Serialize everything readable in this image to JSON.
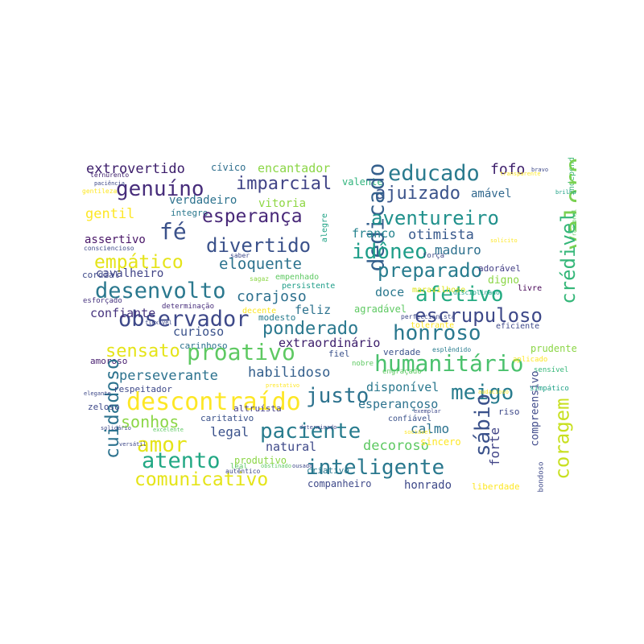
{
  "words": [
    {
      "text": "extrovertido",
      "color": "#3b1c6a"
    },
    {
      "text": "cívico",
      "color": "#2f6f8e"
    },
    {
      "text": "encantador",
      "color": "#8bd646"
    },
    {
      "text": "educado",
      "color": "#2a7b8e"
    },
    {
      "text": "fofo",
      "color": "#3b1c6a"
    },
    {
      "text": "independente",
      "color": "#3fb979"
    },
    {
      "text": "ternurento",
      "color": "#3b1c6a"
    },
    {
      "text": "genuíno",
      "color": "#472d7b"
    },
    {
      "text": "imparcial",
      "color": "#414487"
    },
    {
      "text": "ajuizado",
      "color": "#3a538b"
    },
    {
      "text": "amável",
      "color": "#31688e"
    },
    {
      "text": "valoroso",
      "color": "#7ad151"
    },
    {
      "text": "verdadeiro",
      "color": "#2c728e"
    },
    {
      "text": "vitoria",
      "color": "#8fd744"
    },
    {
      "text": "valente",
      "color": "#2fb47c"
    },
    {
      "text": "gentil",
      "color": "#fde725"
    },
    {
      "text": "íntegro",
      "color": "#2a788e"
    },
    {
      "text": "esperança",
      "color": "#482878"
    },
    {
      "text": "dedicado",
      "color": "#35608d"
    },
    {
      "text": "aventureiro",
      "color": "#21918c"
    },
    {
      "text": "fé",
      "color": "#3b528b"
    },
    {
      "text": "alegre",
      "color": "#20a386"
    },
    {
      "text": "assertivo",
      "color": "#481567"
    },
    {
      "text": "divertido",
      "color": "#3b528b"
    },
    {
      "text": "franco",
      "color": "#25838e"
    },
    {
      "text": "otimista",
      "color": "#38598c"
    },
    {
      "text": "idôneo",
      "color": "#1f9e89"
    },
    {
      "text": "consciencioso",
      "color": "#3e4989"
    },
    {
      "text": "empático",
      "color": "#e5e419"
    },
    {
      "text": "eloquente",
      "color": "#2c728e"
    },
    {
      "text": "maduro",
      "color": "#2d708e"
    },
    {
      "text": "crédivel",
      "color": "#35b779"
    },
    {
      "text": "cavalheiro",
      "color": "#414487"
    },
    {
      "text": "preparado",
      "color": "#287c8e"
    },
    {
      "text": "adorável",
      "color": "#433e85"
    },
    {
      "text": "cordial",
      "color": "#3e4989"
    },
    {
      "text": "desenvolto",
      "color": "#2a788e"
    },
    {
      "text": "empenhado",
      "color": "#5ec962"
    },
    {
      "text": "persistente",
      "color": "#1f9e89"
    },
    {
      "text": "digno",
      "color": "#8bd646"
    },
    {
      "text": "livre",
      "color": "#440154"
    },
    {
      "text": "afetivo",
      "color": "#25ab82"
    },
    {
      "text": "doce",
      "color": "#2a788e"
    },
    {
      "text": "maravilhoso",
      "color": "#dde318"
    },
    {
      "text": "esforçado",
      "color": "#46337e"
    },
    {
      "text": "corajoso",
      "color": "#2d708e"
    },
    {
      "text": "determinação",
      "color": "#472d7b"
    },
    {
      "text": "observador",
      "color": "#3e4989"
    },
    {
      "text": "feliz",
      "color": "#2c728e"
    },
    {
      "text": "agradável",
      "color": "#5ec962"
    },
    {
      "text": "escrupuloso",
      "color": "#3e4989"
    },
    {
      "text": "confiante",
      "color": "#46337e"
    },
    {
      "text": "modesto",
      "color": "#287c8e"
    },
    {
      "text": "ponderado",
      "color": "#2a788e"
    },
    {
      "text": "tolerante",
      "color": "#fde725"
    },
    {
      "text": "eficiente",
      "color": "#3e4989"
    },
    {
      "text": "curioso",
      "color": "#3b528b"
    },
    {
      "text": "honroso",
      "color": "#2a788e"
    },
    {
      "text": "extraordinário",
      "color": "#3b1c6a"
    },
    {
      "text": "sensato",
      "color": "#e5e419"
    },
    {
      "text": "carinhoso",
      "color": "#2c728e"
    },
    {
      "text": "fiel",
      "color": "#3b528b"
    },
    {
      "text": "verdade",
      "color": "#3b528b"
    },
    {
      "text": "prudente",
      "color": "#8bd646"
    },
    {
      "text": "proativo",
      "color": "#5ec962"
    },
    {
      "text": "amoroso",
      "color": "#481f70"
    },
    {
      "text": "humanitário",
      "color": "#4ac16d"
    },
    {
      "text": "sensível",
      "color": "#35b779"
    },
    {
      "text": "perseverante",
      "color": "#2c728e"
    },
    {
      "text": "habilidoso",
      "color": "#35608d"
    },
    {
      "text": "cuidadoso",
      "color": "#2c728e"
    },
    {
      "text": "respeitador",
      "color": "#3e4989"
    },
    {
      "text": "descontraído",
      "color": "#fde725"
    },
    {
      "text": "justo",
      "color": "#2c728e"
    },
    {
      "text": "disponível",
      "color": "#2a788e"
    },
    {
      "text": "meigo",
      "color": "#287c8e"
    },
    {
      "text": "compreensivo",
      "color": "#3e4989"
    },
    {
      "text": "simpático",
      "color": "#1fa187"
    },
    {
      "text": "zeloso",
      "color": "#3e4989"
    },
    {
      "text": "caritativo",
      "color": "#3b528b"
    },
    {
      "text": "esperançoso",
      "color": "#2c728e"
    },
    {
      "text": "sábio",
      "color": "#3b528b"
    },
    {
      "text": "coragem",
      "color": "#c8e020"
    },
    {
      "text": "inventivo",
      "color": "#7ad151"
    },
    {
      "text": "riso",
      "color": "#3e4989"
    },
    {
      "text": "sonhos",
      "color": "#8bd646"
    },
    {
      "text": "paciente",
      "color": "#287c8e"
    },
    {
      "text": "confiável",
      "color": "#3b528b"
    },
    {
      "text": "amor",
      "color": "#e5e419"
    },
    {
      "text": "legal",
      "color": "#3b528b"
    },
    {
      "text": "calmo",
      "color": "#2c728e"
    },
    {
      "text": "atento",
      "color": "#22a884"
    },
    {
      "text": "natural",
      "color": "#3e4989"
    },
    {
      "text": "decoroso",
      "color": "#5ec962"
    },
    {
      "text": "sincero",
      "color": "#fde725"
    },
    {
      "text": "forte",
      "color": "#414487"
    },
    {
      "text": "produtivo",
      "color": "#8bd646"
    },
    {
      "text": "inteligente",
      "color": "#2a788e"
    },
    {
      "text": "criativo",
      "color": "#2a788e"
    },
    {
      "text": "comunicativo",
      "color": "#e5e419"
    },
    {
      "text": "companheiro",
      "color": "#3e4989"
    },
    {
      "text": "honrado",
      "color": "#3e4989"
    },
    {
      "text": "liberdade",
      "color": "#fde725"
    },
    {
      "text": "bondoso",
      "color": "#3e4989"
    },
    {
      "text": "altruísta",
      "color": "#433e85"
    },
    {
      "text": "nobre",
      "color": "#5ec962"
    },
    {
      "text": "engraçado",
      "color": "#5ec962"
    },
    {
      "text": "aplicado",
      "color": "#fde725"
    },
    {
      "text": "esplêndido",
      "color": "#287c8e"
    },
    {
      "text": "autêntico",
      "color": "#3e4989"
    },
    {
      "text": "decente",
      "color": "#fde725"
    },
    {
      "text": "perfeccionista",
      "color": "#3e4989"
    },
    {
      "text": "força",
      "color": "#3e4989"
    },
    {
      "text": "disciplinado",
      "color": "#1fa187"
    },
    {
      "text": "leal",
      "color": "#5ec962"
    },
    {
      "text": "saber",
      "color": "#3e4989"
    },
    {
      "text": "sagaz",
      "color": "#8bd646"
    },
    {
      "text": "gentileza",
      "color": "#fde725"
    },
    {
      "text": "transparente",
      "color": "#fde725"
    },
    {
      "text": "prestativo",
      "color": "#fde725"
    },
    {
      "text": "solidário",
      "color": "#3e4989"
    },
    {
      "text": "excelente",
      "color": "#5ec962"
    },
    {
      "text": "audacioso",
      "color": "#fde725"
    },
    {
      "text": "exemplar",
      "color": "#3e4989"
    },
    {
      "text": "elegante",
      "color": "#3e4989"
    },
    {
      "text": "brilhante",
      "color": "#1fa187"
    },
    {
      "text": "paciência",
      "color": "#3e4989"
    },
    {
      "text": "solícito",
      "color": "#fde725"
    },
    {
      "text": "ousado",
      "color": "#3e4989"
    },
    {
      "text": "obstinado",
      "color": "#5ec962"
    },
    {
      "text": "determinado",
      "color": "#3e4989"
    },
    {
      "text": "versátil",
      "color": "#3e4989"
    },
    {
      "text": "flexível",
      "color": "#3e4989"
    },
    {
      "text": "bravo",
      "color": "#3e4989"
    },
    {
      "text": "racional",
      "color": "#5ec962"
    },
    {
      "text": "sociável",
      "color": "#fde725"
    }
  ]
}
